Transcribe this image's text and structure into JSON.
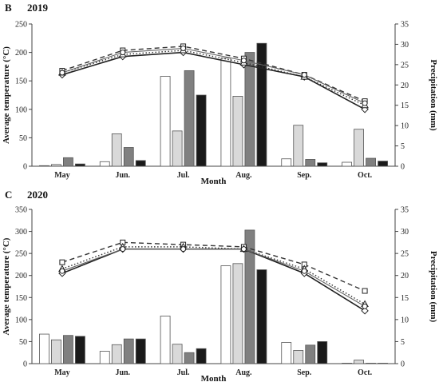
{
  "chart_data": [
    {
      "panel": "B",
      "year": "2019",
      "type": "bar+line",
      "categories": [
        "May",
        "Jun.",
        "Jul.",
        "Aug.",
        "Sep.",
        "Oct."
      ],
      "xlabel": "Month",
      "ylabel": "Average temperature (°C)",
      "y2label": "Precipitation (mm)",
      "ylim": [
        0,
        250
      ],
      "yticks": [
        0,
        50,
        100,
        150,
        200,
        250
      ],
      "y2lim": [
        0,
        35
      ],
      "y2ticks": [
        0,
        5,
        10,
        15,
        20,
        25,
        30,
        35
      ],
      "bar_colors": [
        "#ffffff",
        "#d9d9d9",
        "#808080",
        "#1a1a1a"
      ],
      "bar_series": [
        {
          "values": [
            1,
            8,
            158,
            190,
            13,
            7
          ]
        },
        {
          "values": [
            3,
            57,
            62,
            123,
            72,
            65
          ]
        },
        {
          "values": [
            15,
            33,
            168,
            200,
            12,
            14
          ]
        },
        {
          "values": [
            4,
            10,
            125,
            216,
            6,
            9
          ]
        }
      ],
      "line_series": [
        {
          "style": "solid",
          "marker": "diamond",
          "values": [
            22.5,
            27,
            28,
            25,
            22,
            14
          ]
        },
        {
          "style": "dashed",
          "marker": "square",
          "values": [
            23.5,
            28.5,
            29.5,
            26.5,
            22.5,
            16
          ]
        },
        {
          "style": "dotted",
          "marker": "triangle",
          "values": [
            23,
            27.5,
            28.5,
            25.5,
            22,
            15
          ]
        },
        {
          "style": "solid-light",
          "marker": "circle",
          "values": [
            23,
            28,
            29,
            26,
            22.5,
            15.5
          ]
        }
      ]
    },
    {
      "panel": "C",
      "year": "2020",
      "type": "bar+line",
      "categories": [
        "May",
        "Jun.",
        "Jul.",
        "Aug.",
        "Sep.",
        "Oct."
      ],
      "xlabel": "Month",
      "ylabel": "Average temperature (°C)",
      "y2label": "Precipitation (mm)",
      "ylim": [
        0,
        350
      ],
      "yticks": [
        0,
        50,
        100,
        150,
        200,
        250,
        300,
        350
      ],
      "y2lim": [
        0,
        35
      ],
      "y2ticks": [
        0,
        5,
        10,
        15,
        20,
        25,
        30,
        35
      ],
      "bar_colors": [
        "#ffffff",
        "#d9d9d9",
        "#808080",
        "#1a1a1a"
      ],
      "bar_series": [
        {
          "values": [
            67,
            28,
            108,
            222,
            48,
            1
          ]
        },
        {
          "values": [
            54,
            43,
            44,
            227,
            30,
            8
          ]
        },
        {
          "values": [
            64,
            56,
            25,
            303,
            42,
            1
          ]
        },
        {
          "values": [
            62,
            56,
            34,
            213,
            50,
            1
          ]
        }
      ],
      "line_series": [
        {
          "style": "solid",
          "marker": "diamond",
          "values": [
            20.5,
            26,
            26,
            26,
            20.5,
            12
          ]
        },
        {
          "style": "dashed",
          "marker": "square",
          "values": [
            23,
            27.5,
            27,
            26.5,
            22.5,
            16.5
          ]
        },
        {
          "style": "dotted",
          "marker": "triangle",
          "values": [
            21.5,
            26.5,
            26.5,
            26,
            21.5,
            13.5
          ]
        },
        {
          "style": "solid-light",
          "marker": "circle",
          "values": [
            21,
            26,
            26,
            26,
            21,
            13
          ]
        }
      ]
    }
  ]
}
